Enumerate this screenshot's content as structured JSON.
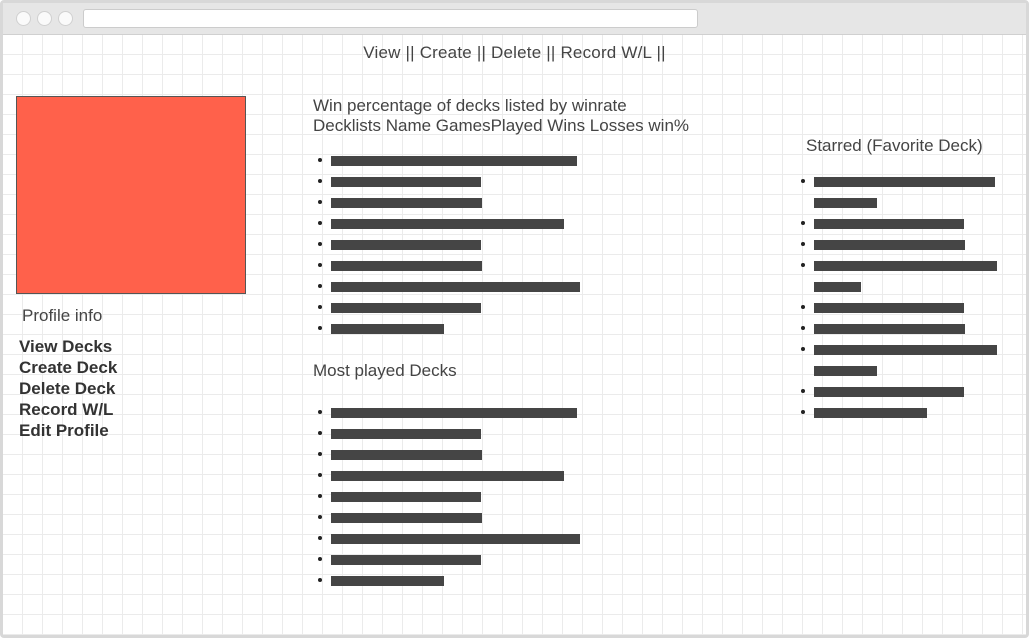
{
  "topnav": {
    "view": "View",
    "create": "Create",
    "delete": "Delete",
    "record": "Record W/L",
    "sep": " || "
  },
  "sidebar": {
    "profile_info": "Profile info",
    "links": [
      "View Decks",
      "Create Deck",
      "Delete Deck",
      "Record W/L",
      "Edit Profile"
    ]
  },
  "winrate": {
    "title": "Win percentage of decks listed by winrate",
    "header": "Decklists Name GamesPlayed Wins Losses win%"
  },
  "most_played": {
    "title": "Most played Decks"
  },
  "starred": {
    "title": "Starred (Favorite Deck)"
  },
  "colors": {
    "avatar": "#ff614b",
    "placeholder_bar": "#454545"
  }
}
